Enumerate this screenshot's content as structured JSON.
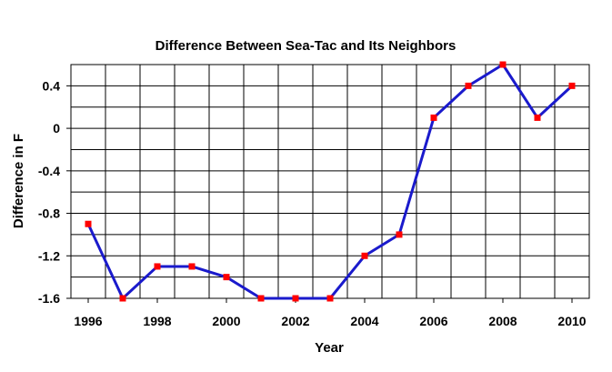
{
  "chart_data": {
    "type": "line",
    "title": "Difference Between Sea-Tac and Its Neighbors",
    "xlabel": "Year",
    "ylabel": "Difference in F",
    "xlim": [
      1996,
      2010
    ],
    "ylim": [
      -1.6,
      0.6
    ],
    "x_ticks": [
      "1996",
      "1998",
      "2000",
      "2002",
      "2004",
      "2006",
      "2008",
      "2010"
    ],
    "y_ticks": [
      "0.4",
      "0",
      "-0.4",
      "-0.8",
      "-1.2",
      "-1.6"
    ],
    "grid": true,
    "legend": "none",
    "series": [
      {
        "line_color": "#1a1acc",
        "marker_color": "#ff0000",
        "marker": "square",
        "x": [
          1996,
          1997,
          1998,
          1999,
          2000,
          2001,
          2002,
          2003,
          2004,
          2005,
          2006,
          2007,
          2008,
          2009,
          2010
        ],
        "values": [
          -0.9,
          -1.6,
          -1.3,
          -1.3,
          -1.4,
          -1.6,
          -1.6,
          -1.6,
          -1.2,
          -1.0,
          0.1,
          0.4,
          0.6,
          0.1,
          0.4
        ]
      }
    ]
  }
}
